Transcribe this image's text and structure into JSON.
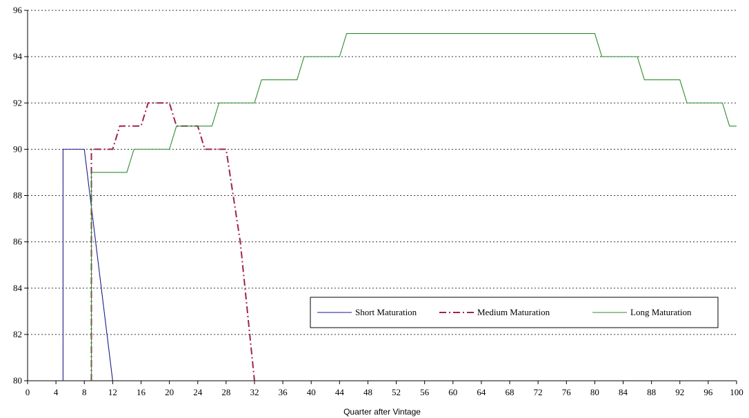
{
  "chart_data": {
    "type": "line",
    "title": "",
    "xlabel": "Quarter after Vintage",
    "ylabel": "",
    "xlim": [
      0,
      100
    ],
    "ylim": [
      80,
      96
    ],
    "xticks": [
      0,
      4,
      8,
      12,
      16,
      20,
      24,
      28,
      32,
      36,
      40,
      44,
      48,
      52,
      56,
      60,
      64,
      68,
      72,
      76,
      80,
      84,
      88,
      92,
      96,
      100
    ],
    "yticks": [
      80,
      82,
      84,
      86,
      88,
      90,
      92,
      94,
      96
    ],
    "grid": "horizontal dotted",
    "legend_position": "lower-right",
    "series": [
      {
        "name": "Short Maturation",
        "color": "#1a1a8c",
        "style": "solid",
        "points": [
          [
            5,
            80
          ],
          [
            5,
            90
          ],
          [
            8,
            90
          ],
          [
            12,
            80
          ]
        ]
      },
      {
        "name": "Medium Maturation",
        "color": "#a0204f",
        "style": "dashdot",
        "points": [
          [
            9,
            80
          ],
          [
            9,
            90
          ],
          [
            12,
            90
          ],
          [
            13,
            91
          ],
          [
            16,
            91
          ],
          [
            17,
            92
          ],
          [
            20,
            92
          ],
          [
            21,
            91
          ],
          [
            24,
            91
          ],
          [
            25,
            90
          ],
          [
            28,
            90
          ],
          [
            30,
            86
          ],
          [
            31,
            83
          ],
          [
            32,
            80
          ]
        ]
      },
      {
        "name": "Long Maturation",
        "color": "#2e8b2e",
        "style": "solid",
        "points": [
          [
            9,
            80
          ],
          [
            9,
            89
          ],
          [
            14,
            89
          ],
          [
            15,
            90
          ],
          [
            20,
            90
          ],
          [
            21,
            91
          ],
          [
            26,
            91
          ],
          [
            27,
            92
          ],
          [
            32,
            92
          ],
          [
            33,
            93
          ],
          [
            38,
            93
          ],
          [
            39,
            94
          ],
          [
            44,
            94
          ],
          [
            45,
            95
          ],
          [
            80,
            95
          ],
          [
            81,
            94
          ],
          [
            86,
            94
          ],
          [
            87,
            93
          ],
          [
            92,
            93
          ],
          [
            93,
            92
          ],
          [
            98,
            92
          ],
          [
            99,
            91
          ],
          [
            100,
            91
          ]
        ]
      }
    ]
  }
}
